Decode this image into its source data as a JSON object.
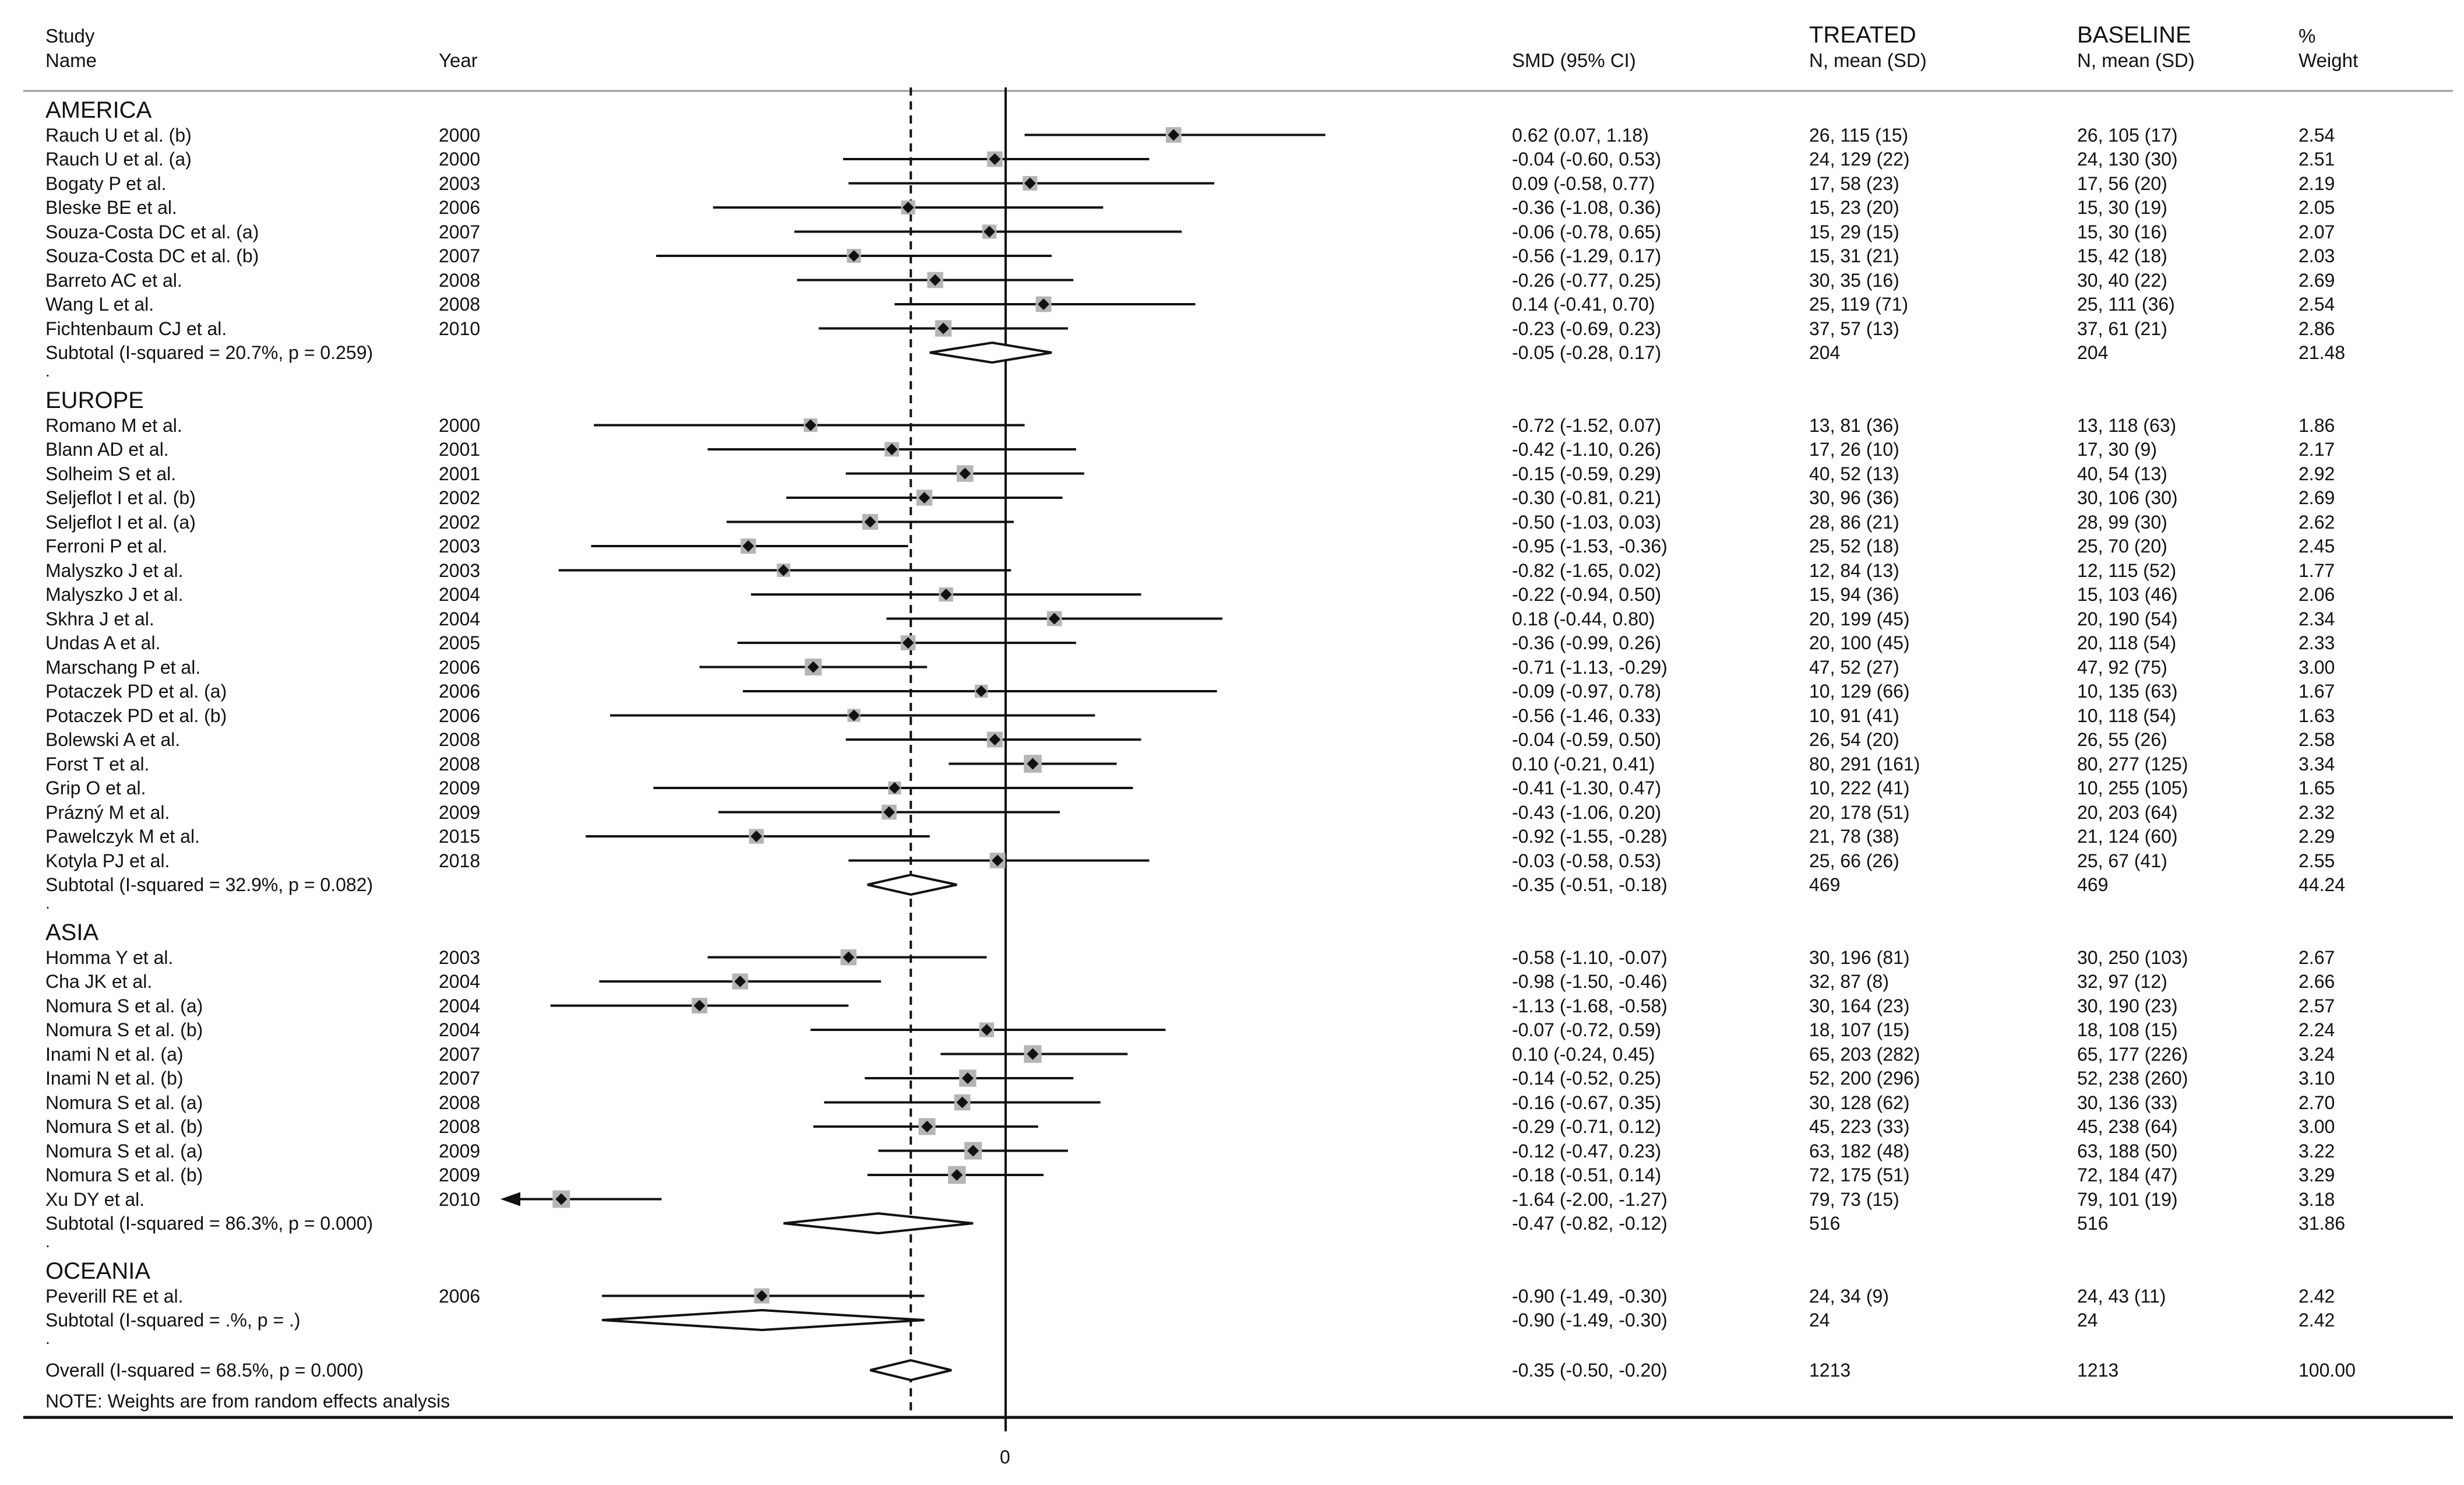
{
  "headers": {
    "study": "Study",
    "name": "Name",
    "year": "Year",
    "smd": "SMD (95% CI)",
    "treated": "TREATED",
    "treated_sub": "N, mean (SD)",
    "baseline": "BASELINE",
    "baseline_sub": "N, mean (SD)",
    "weight": "%",
    "weight_sub": "Weight"
  },
  "note": "NOTE: Weights are from random effects analysis",
  "chart_data": {
    "type": "forest",
    "xaxis": {
      "min": -2.0,
      "max": 1.25,
      "null_line": 0,
      "ticks": [
        0
      ],
      "pooled_line": -0.35
    },
    "regions": [
      {
        "name": "AMERICA",
        "studies": [
          {
            "name": "Rauch U et al. (b)",
            "year": "2000",
            "smd": 0.62,
            "lo": 0.07,
            "hi": 1.18,
            "ci": "0.62 (0.07, 1.18)",
            "treated": "26, 115 (15)",
            "baseline": "26, 105 (17)",
            "weight": "2.54"
          },
          {
            "name": "Rauch U et al. (a)",
            "year": "2000",
            "smd": -0.04,
            "lo": -0.6,
            "hi": 0.53,
            "ci": "-0.04 (-0.60, 0.53)",
            "treated": "24, 129 (22)",
            "baseline": "24, 130 (30)",
            "weight": "2.51"
          },
          {
            "name": "Bogaty P et al.",
            "year": "2003",
            "smd": 0.09,
            "lo": -0.58,
            "hi": 0.77,
            "ci": "0.09 (-0.58, 0.77)",
            "treated": "17, 58 (23)",
            "baseline": "17, 56 (20)",
            "weight": "2.19"
          },
          {
            "name": "Bleske BE et al.",
            "year": "2006",
            "smd": -0.36,
            "lo": -1.08,
            "hi": 0.36,
            "ci": "-0.36 (-1.08, 0.36)",
            "treated": "15, 23 (20)",
            "baseline": "15, 30 (19)",
            "weight": "2.05"
          },
          {
            "name": "Souza-Costa DC et al. (a)",
            "year": "2007",
            "smd": -0.06,
            "lo": -0.78,
            "hi": 0.65,
            "ci": "-0.06 (-0.78, 0.65)",
            "treated": "15, 29 (15)",
            "baseline": "15, 30 (16)",
            "weight": "2.07"
          },
          {
            "name": "Souza-Costa DC et al. (b)",
            "year": "2007",
            "smd": -0.56,
            "lo": -1.29,
            "hi": 0.17,
            "ci": "-0.56 (-1.29, 0.17)",
            "treated": "15, 31 (21)",
            "baseline": "15, 42 (18)",
            "weight": "2.03"
          },
          {
            "name": "Barreto AC et al.",
            "year": "2008",
            "smd": -0.26,
            "lo": -0.77,
            "hi": 0.25,
            "ci": "-0.26 (-0.77, 0.25)",
            "treated": "30, 35 (16)",
            "baseline": "30, 40 (22)",
            "weight": "2.69"
          },
          {
            "name": "Wang L et al.",
            "year": "2008",
            "smd": 0.14,
            "lo": -0.41,
            "hi": 0.7,
            "ci": "0.14 (-0.41, 0.70)",
            "treated": "25, 119 (71)",
            "baseline": "25, 111 (36)",
            "weight": "2.54"
          },
          {
            "name": "Fichtenbaum CJ et al.",
            "year": "2010",
            "smd": -0.23,
            "lo": -0.69,
            "hi": 0.23,
            "ci": "-0.23 (-0.69, 0.23)",
            "treated": "37, 57 (13)",
            "baseline": "37, 61 (21)",
            "weight": "2.86"
          }
        ],
        "subtotal": {
          "label": "Subtotal  (I-squared = 20.7%, p = 0.259)",
          "smd": -0.05,
          "lo": -0.28,
          "hi": 0.17,
          "ci": "-0.05 (-0.28, 0.17)",
          "treated": "204",
          "baseline": "204",
          "weight": "21.48"
        }
      },
      {
        "name": "EUROPE",
        "studies": [
          {
            "name": "Romano M et al.",
            "year": "2000",
            "smd": -0.72,
            "lo": -1.52,
            "hi": 0.07,
            "ci": "-0.72 (-1.52, 0.07)",
            "treated": "13, 81 (36)",
            "baseline": "13, 118 (63)",
            "weight": "1.86"
          },
          {
            "name": "Blann AD et al.",
            "year": "2001",
            "smd": -0.42,
            "lo": -1.1,
            "hi": 0.26,
            "ci": "-0.42 (-1.10, 0.26)",
            "treated": "17, 26 (10)",
            "baseline": "17, 30 (9)",
            "weight": "2.17"
          },
          {
            "name": "Solheim S et al.",
            "year": "2001",
            "smd": -0.15,
            "lo": -0.59,
            "hi": 0.29,
            "ci": "-0.15 (-0.59, 0.29)",
            "treated": "40, 52 (13)",
            "baseline": "40, 54 (13)",
            "weight": "2.92"
          },
          {
            "name": "Seljeflot I et al. (b)",
            "year": "2002",
            "smd": -0.3,
            "lo": -0.81,
            "hi": 0.21,
            "ci": "-0.30 (-0.81, 0.21)",
            "treated": "30, 96 (36)",
            "baseline": "30, 106 (30)",
            "weight": "2.69"
          },
          {
            "name": "Seljeflot I et al. (a)",
            "year": "2002",
            "smd": -0.5,
            "lo": -1.03,
            "hi": 0.03,
            "ci": "-0.50 (-1.03, 0.03)",
            "treated": "28, 86 (21)",
            "baseline": "28, 99 (30)",
            "weight": "2.62"
          },
          {
            "name": "Ferroni P et al.",
            "year": "2003",
            "smd": -0.95,
            "lo": -1.53,
            "hi": -0.36,
            "ci": "-0.95 (-1.53, -0.36)",
            "treated": "25, 52 (18)",
            "baseline": "25, 70 (20)",
            "weight": "2.45"
          },
          {
            "name": "Malyszko J et al.",
            "year": "2003",
            "smd": -0.82,
            "lo": -1.65,
            "hi": 0.02,
            "ci": "-0.82 (-1.65, 0.02)",
            "treated": "12, 84 (13)",
            "baseline": "12, 115 (52)",
            "weight": "1.77"
          },
          {
            "name": "Malyszko J et al.",
            "year": "2004",
            "smd": -0.22,
            "lo": -0.94,
            "hi": 0.5,
            "ci": "-0.22 (-0.94, 0.50)",
            "treated": "15, 94 (36)",
            "baseline": "15, 103 (46)",
            "weight": "2.06"
          },
          {
            "name": "Skhra J et al.",
            "year": "2004",
            "smd": 0.18,
            "lo": -0.44,
            "hi": 0.8,
            "ci": "0.18 (-0.44, 0.80)",
            "treated": "20, 199 (45)",
            "baseline": "20, 190 (54)",
            "weight": "2.34"
          },
          {
            "name": "Undas A et al.",
            "year": "2005",
            "smd": -0.36,
            "lo": -0.99,
            "hi": 0.26,
            "ci": "-0.36 (-0.99, 0.26)",
            "treated": "20, 100 (45)",
            "baseline": "20, 118 (54)",
            "weight": "2.33"
          },
          {
            "name": "Marschang P et al.",
            "year": "2006",
            "smd": -0.71,
            "lo": -1.13,
            "hi": -0.29,
            "ci": "-0.71 (-1.13, -0.29)",
            "treated": "47, 52 (27)",
            "baseline": "47, 92 (75)",
            "weight": "3.00"
          },
          {
            "name": "Potaczek PD et al. (a)",
            "year": "2006",
            "smd": -0.09,
            "lo": -0.97,
            "hi": 0.78,
            "ci": "-0.09 (-0.97, 0.78)",
            "treated": "10, 129 (66)",
            "baseline": "10, 135 (63)",
            "weight": "1.67"
          },
          {
            "name": "Potaczek PD et al. (b)",
            "year": "2006",
            "smd": -0.56,
            "lo": -1.46,
            "hi": 0.33,
            "ci": "-0.56 (-1.46, 0.33)",
            "treated": "10, 91 (41)",
            "baseline": "10, 118 (54)",
            "weight": "1.63"
          },
          {
            "name": "Bolewski A et al.",
            "year": "2008",
            "smd": -0.04,
            "lo": -0.59,
            "hi": 0.5,
            "ci": "-0.04 (-0.59, 0.50)",
            "treated": "26, 54 (20)",
            "baseline": "26, 55 (26)",
            "weight": "2.58"
          },
          {
            "name": "Forst T et al.",
            "year": "2008",
            "smd": 0.1,
            "lo": -0.21,
            "hi": 0.41,
            "ci": "0.10 (-0.21, 0.41)",
            "treated": "80, 291 (161)",
            "baseline": "80, 277 (125)",
            "weight": "3.34"
          },
          {
            "name": "Grip O et al.",
            "year": "2009",
            "smd": -0.41,
            "lo": -1.3,
            "hi": 0.47,
            "ci": "-0.41 (-1.30, 0.47)",
            "treated": "10, 222 (41)",
            "baseline": "10, 255 (105)",
            "weight": "1.65"
          },
          {
            "name": "Prázný M et al.",
            "year": "2009",
            "smd": -0.43,
            "lo": -1.06,
            "hi": 0.2,
            "ci": "-0.43 (-1.06, 0.20)",
            "treated": "20, 178 (51)",
            "baseline": "20, 203 (64)",
            "weight": "2.32"
          },
          {
            "name": "Pawelczyk M et al.",
            "year": "2015",
            "smd": -0.92,
            "lo": -1.55,
            "hi": -0.28,
            "ci": "-0.92 (-1.55, -0.28)",
            "treated": "21, 78 (38)",
            "baseline": "21, 124 (60)",
            "weight": "2.29"
          },
          {
            "name": "Kotyla PJ et al.",
            "year": "2018",
            "smd": -0.03,
            "lo": -0.58,
            "hi": 0.53,
            "ci": "-0.03 (-0.58, 0.53)",
            "treated": "25, 66 (26)",
            "baseline": "25, 67 (41)",
            "weight": "2.55"
          }
        ],
        "subtotal": {
          "label": "Subtotal  (I-squared = 32.9%, p = 0.082)",
          "smd": -0.35,
          "lo": -0.51,
          "hi": -0.18,
          "ci": "-0.35 (-0.51, -0.18)",
          "treated": "469",
          "baseline": "469",
          "weight": "44.24"
        }
      },
      {
        "name": "ASIA",
        "studies": [
          {
            "name": "Homma Y et al.",
            "year": "2003",
            "smd": -0.58,
            "lo": -1.1,
            "hi": -0.07,
            "ci": "-0.58 (-1.10, -0.07)",
            "treated": "30, 196 (81)",
            "baseline": "30, 250 (103)",
            "weight": "2.67"
          },
          {
            "name": "Cha JK et al.",
            "year": "2004",
            "smd": -0.98,
            "lo": -1.5,
            "hi": -0.46,
            "ci": "-0.98 (-1.50, -0.46)",
            "treated": "32, 87 (8)",
            "baseline": "32, 97 (12)",
            "weight": "2.66"
          },
          {
            "name": "Nomura S et al. (a)",
            "year": "2004",
            "smd": -1.13,
            "lo": -1.68,
            "hi": -0.58,
            "ci": "-1.13 (-1.68, -0.58)",
            "treated": "30, 164 (23)",
            "baseline": "30, 190 (23)",
            "weight": "2.57"
          },
          {
            "name": "Nomura S et al. (b)",
            "year": "2004",
            "smd": -0.07,
            "lo": -0.72,
            "hi": 0.59,
            "ci": "-0.07 (-0.72, 0.59)",
            "treated": "18, 107 (15)",
            "baseline": "18, 108 (15)",
            "weight": "2.24"
          },
          {
            "name": "Inami N et al. (a)",
            "year": "2007",
            "smd": 0.1,
            "lo": -0.24,
            "hi": 0.45,
            "ci": "0.10 (-0.24, 0.45)",
            "treated": "65, 203 (282)",
            "baseline": "65, 177 (226)",
            "weight": "3.24"
          },
          {
            "name": "Inami N et al. (b)",
            "year": "2007",
            "smd": -0.14,
            "lo": -0.52,
            "hi": 0.25,
            "ci": "-0.14 (-0.52, 0.25)",
            "treated": "52, 200 (296)",
            "baseline": "52, 238 (260)",
            "weight": "3.10"
          },
          {
            "name": "Nomura S et al. (a)",
            "year": "2008",
            "smd": -0.16,
            "lo": -0.67,
            "hi": 0.35,
            "ci": "-0.16 (-0.67, 0.35)",
            "treated": "30, 128 (62)",
            "baseline": "30, 136 (33)",
            "weight": "2.70"
          },
          {
            "name": "Nomura S et al. (b)",
            "year": "2008",
            "smd": -0.29,
            "lo": -0.71,
            "hi": 0.12,
            "ci": "-0.29 (-0.71, 0.12)",
            "treated": "45, 223 (33)",
            "baseline": "45, 238 (64)",
            "weight": "3.00"
          },
          {
            "name": "Nomura S et al. (a)",
            "year": "2009",
            "smd": -0.12,
            "lo": -0.47,
            "hi": 0.23,
            "ci": "-0.12 (-0.47, 0.23)",
            "treated": "63, 182 (48)",
            "baseline": "63, 188 (50)",
            "weight": "3.22"
          },
          {
            "name": "Nomura S et al. (b)",
            "year": "2009",
            "smd": -0.18,
            "lo": -0.51,
            "hi": 0.14,
            "ci": "-0.18 (-0.51, 0.14)",
            "treated": "72, 175 (51)",
            "baseline": "72, 184 (47)",
            "weight": "3.29"
          },
          {
            "name": "Xu DY et al.",
            "year": "2010",
            "smd": -1.64,
            "lo": -2.0,
            "hi": -1.27,
            "ci": "-1.64 (-2.00, -1.27)",
            "treated": "79, 73 (15)",
            "baseline": "79, 101 (19)",
            "weight": "3.18",
            "arrow_left": true
          }
        ],
        "subtotal": {
          "label": "Subtotal  (I-squared = 86.3%, p = 0.000)",
          "smd": -0.47,
          "lo": -0.82,
          "hi": -0.12,
          "ci": "-0.47 (-0.82, -0.12)",
          "treated": "516",
          "baseline": "516",
          "weight": "31.86"
        }
      },
      {
        "name": "OCEANIA",
        "studies": [
          {
            "name": "Peverill RE et al.",
            "year": "2006",
            "smd": -0.9,
            "lo": -1.49,
            "hi": -0.3,
            "ci": "-0.90 (-1.49, -0.30)",
            "treated": "24, 34 (9)",
            "baseline": "24, 43 (11)",
            "weight": "2.42"
          }
        ],
        "subtotal": {
          "label": "Subtotal  (I-squared = .%, p = .)",
          "smd": -0.9,
          "lo": -1.49,
          "hi": -0.3,
          "ci": "-0.90 (-1.49, -0.30)",
          "treated": "24",
          "baseline": "24",
          "weight": "2.42"
        }
      }
    ],
    "overall": {
      "label": "Overall  (I-squared = 68.5%, p = 0.000)",
      "smd": -0.35,
      "lo": -0.5,
      "hi": -0.2,
      "ci": "-0.35 (-0.50, -0.20)",
      "treated": "1213",
      "baseline": "1213",
      "weight": "100.00"
    }
  }
}
